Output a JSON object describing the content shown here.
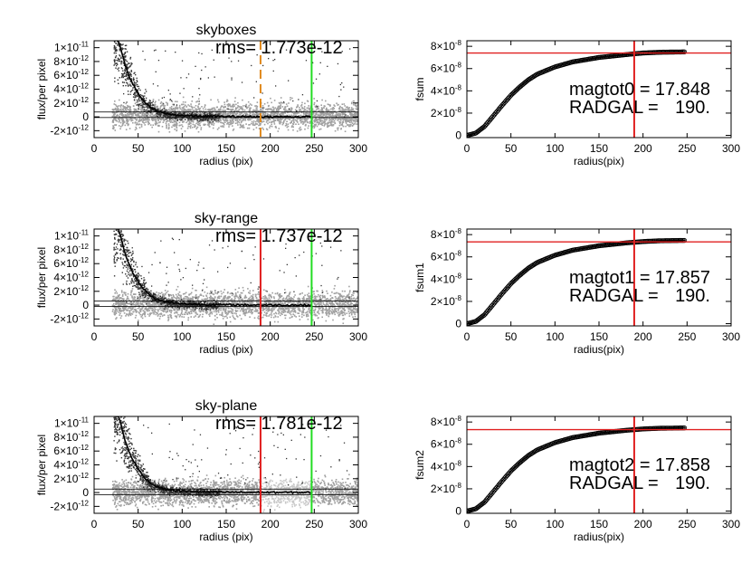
{
  "chart_data": [
    {
      "type": "scatter",
      "title": "skyboxes",
      "xlabel": "radius (pix)",
      "ylabel": "flux/per pixel",
      "xlim": [
        0,
        300
      ],
      "ylim": [
        -3e-12,
        1.1e-11
      ],
      "xticks": [
        "0",
        "50",
        "100",
        "150",
        "200",
        "250",
        "300"
      ],
      "yticks": [
        {
          "value": -2e-12,
          "mant": "-2",
          "exp": "-12"
        },
        {
          "value": 0,
          "mant": "0",
          "exp": ""
        },
        {
          "value": 2e-12,
          "mant": "2",
          "exp": "-12"
        },
        {
          "value": 4e-12,
          "mant": "4",
          "exp": "-12"
        },
        {
          "value": 6e-12,
          "mant": "6",
          "exp": "-12"
        },
        {
          "value": 8e-12,
          "mant": "8",
          "exp": "-12"
        },
        {
          "value": 1e-11,
          "mant": "1",
          "exp": "-11"
        }
      ],
      "times_sign": "×10",
      "rms_label": "rms=",
      "rms_value": "1.773e-12",
      "sky_level": 3e-13,
      "vlines": [
        {
          "x": 189,
          "color": "#e08a1e",
          "style": "dashed"
        },
        {
          "x": 247,
          "color": "#22dd22",
          "style": "solid"
        }
      ],
      "profile": [
        [
          28,
          1.1e-11
        ],
        [
          35,
          7.6e-12
        ],
        [
          40,
          5.8e-12
        ],
        [
          45,
          4.5e-12
        ],
        [
          50,
          3.4e-12
        ],
        [
          55,
          2.5e-12
        ],
        [
          60,
          1.8e-12
        ],
        [
          65,
          1.3e-12
        ],
        [
          70,
          9e-13
        ],
        [
          80,
          5e-13
        ],
        [
          90,
          3e-13
        ],
        [
          100,
          2e-13
        ],
        [
          120,
          1e-13
        ],
        [
          150,
          5e-14
        ],
        [
          200,
          2e-14
        ],
        [
          247,
          1e-14
        ]
      ]
    },
    {
      "type": "line",
      "title": "",
      "xlabel": "radius(pix)",
      "ylabel": "fsum",
      "xlim": [
        0,
        300
      ],
      "ylim": [
        -2e-09,
        8.5e-08
      ],
      "xticks": [
        "0",
        "50",
        "100",
        "150",
        "200",
        "250",
        "300"
      ],
      "yticks": [
        {
          "value": 0,
          "mant": "0",
          "exp": ""
        },
        {
          "value": 2e-08,
          "mant": "2",
          "exp": "-8"
        },
        {
          "value": 4e-08,
          "mant": "4",
          "exp": "-8"
        },
        {
          "value": 6e-08,
          "mant": "6",
          "exp": "-8"
        },
        {
          "value": 8e-08,
          "mant": "8",
          "exp": "-8"
        }
      ],
      "times_sign": "×10",
      "annotation": [
        {
          "label": "magtot0 =",
          "value": "17.848"
        },
        {
          "label": "RADGAL =",
          "value": "190."
        }
      ],
      "hline": 7.4e-08,
      "vline": 190,
      "curve": [
        [
          0,
          0
        ],
        [
          10,
          2e-09
        ],
        [
          20,
          8e-09
        ],
        [
          30,
          1.75e-08
        ],
        [
          40,
          2.7e-08
        ],
        [
          50,
          3.6e-08
        ],
        [
          60,
          4.35e-08
        ],
        [
          70,
          5e-08
        ],
        [
          80,
          5.5e-08
        ],
        [
          100,
          6.15e-08
        ],
        [
          120,
          6.6e-08
        ],
        [
          150,
          7e-08
        ],
        [
          180,
          7.25e-08
        ],
        [
          200,
          7.4e-08
        ],
        [
          220,
          7.47e-08
        ],
        [
          248,
          7.5e-08
        ]
      ]
    },
    {
      "type": "scatter",
      "title": "sky-range",
      "xlabel": "radius (pix)",
      "ylabel": "flux/per pixel",
      "xlim": [
        0,
        300
      ],
      "ylim": [
        -3e-12,
        1.1e-11
      ],
      "xticks": [
        "0",
        "50",
        "100",
        "150",
        "200",
        "250",
        "300"
      ],
      "yticks": [
        {
          "value": -2e-12,
          "mant": "-2",
          "exp": "-12"
        },
        {
          "value": 0,
          "mant": "0",
          "exp": ""
        },
        {
          "value": 2e-12,
          "mant": "2",
          "exp": "-12"
        },
        {
          "value": 4e-12,
          "mant": "4",
          "exp": "-12"
        },
        {
          "value": 6e-12,
          "mant": "6",
          "exp": "-12"
        },
        {
          "value": 8e-12,
          "mant": "8",
          "exp": "-12"
        },
        {
          "value": 1e-11,
          "mant": "1",
          "exp": "-11"
        }
      ],
      "times_sign": "×10",
      "rms_label": "rms=",
      "rms_value": "1.737e-12",
      "sky_level": 2e-13,
      "vlines": [
        {
          "x": 189,
          "color": "#e02020",
          "style": "solid"
        },
        {
          "x": 247,
          "color": "#22dd22",
          "style": "solid"
        }
      ],
      "profile": [
        [
          28,
          1.1e-11
        ],
        [
          35,
          7.6e-12
        ],
        [
          40,
          5.8e-12
        ],
        [
          45,
          4.5e-12
        ],
        [
          50,
          3.4e-12
        ],
        [
          55,
          2.5e-12
        ],
        [
          60,
          1.8e-12
        ],
        [
          65,
          1.3e-12
        ],
        [
          70,
          9e-13
        ],
        [
          80,
          5e-13
        ],
        [
          90,
          3e-13
        ],
        [
          100,
          2e-13
        ],
        [
          120,
          1e-13
        ],
        [
          150,
          5e-14
        ],
        [
          200,
          2e-14
        ],
        [
          247,
          1e-14
        ]
      ]
    },
    {
      "type": "line",
      "title": "",
      "xlabel": "radius(pix)",
      "ylabel": "fsum1",
      "xlim": [
        0,
        300
      ],
      "ylim": [
        -2e-09,
        8.5e-08
      ],
      "xticks": [
        "0",
        "50",
        "100",
        "150",
        "200",
        "250",
        "300"
      ],
      "yticks": [
        {
          "value": 0,
          "mant": "0",
          "exp": ""
        },
        {
          "value": 2e-08,
          "mant": "2",
          "exp": "-8"
        },
        {
          "value": 4e-08,
          "mant": "4",
          "exp": "-8"
        },
        {
          "value": 6e-08,
          "mant": "6",
          "exp": "-8"
        },
        {
          "value": 8e-08,
          "mant": "8",
          "exp": "-8"
        }
      ],
      "times_sign": "×10",
      "annotation": [
        {
          "label": "magtot1 =",
          "value": "17.857"
        },
        {
          "label": "RADGAL =",
          "value": "190."
        }
      ],
      "hline": 7.35e-08,
      "vline": 190,
      "curve": [
        [
          0,
          0
        ],
        [
          10,
          2e-09
        ],
        [
          20,
          8e-09
        ],
        [
          30,
          1.75e-08
        ],
        [
          40,
          2.7e-08
        ],
        [
          50,
          3.6e-08
        ],
        [
          60,
          4.35e-08
        ],
        [
          70,
          5e-08
        ],
        [
          80,
          5.5e-08
        ],
        [
          100,
          6.15e-08
        ],
        [
          120,
          6.6e-08
        ],
        [
          150,
          7e-08
        ],
        [
          180,
          7.25e-08
        ],
        [
          200,
          7.38e-08
        ],
        [
          220,
          7.45e-08
        ],
        [
          248,
          7.48e-08
        ]
      ]
    },
    {
      "type": "scatter",
      "title": "sky-plane",
      "xlabel": "radius (pix)",
      "ylabel": "flux/per pixel",
      "xlim": [
        0,
        300
      ],
      "ylim": [
        -3e-12,
        1.1e-11
      ],
      "xticks": [
        "0",
        "50",
        "100",
        "150",
        "200",
        "250",
        "300"
      ],
      "yticks": [
        {
          "value": -2e-12,
          "mant": "-2",
          "exp": "-12"
        },
        {
          "value": 0,
          "mant": "0",
          "exp": ""
        },
        {
          "value": 2e-12,
          "mant": "2",
          "exp": "-12"
        },
        {
          "value": 4e-12,
          "mant": "4",
          "exp": "-12"
        },
        {
          "value": 6e-12,
          "mant": "6",
          "exp": "-12"
        },
        {
          "value": 8e-12,
          "mant": "8",
          "exp": "-12"
        },
        {
          "value": 1e-11,
          "mant": "1",
          "exp": "-11"
        }
      ],
      "times_sign": "×10",
      "rms_label": "rms=",
      "rms_value": "1.781e-12",
      "sky_level": 1e-13,
      "vlines": [
        {
          "x": 189,
          "color": "#e02020",
          "style": "solid"
        },
        {
          "x": 247,
          "color": "#22dd22",
          "style": "solid"
        }
      ],
      "profile": [
        [
          28,
          1.1e-11
        ],
        [
          35,
          7.6e-12
        ],
        [
          40,
          5.8e-12
        ],
        [
          45,
          4.5e-12
        ],
        [
          50,
          3.4e-12
        ],
        [
          55,
          2.5e-12
        ],
        [
          60,
          1.8e-12
        ],
        [
          65,
          1.3e-12
        ],
        [
          70,
          9e-13
        ],
        [
          80,
          5e-13
        ],
        [
          90,
          3e-13
        ],
        [
          100,
          2e-13
        ],
        [
          120,
          1e-13
        ],
        [
          150,
          5e-14
        ],
        [
          200,
          2e-14
        ],
        [
          247,
          1e-14
        ]
      ]
    },
    {
      "type": "line",
      "title": "",
      "xlabel": "radius(pix)",
      "ylabel": "fsum2",
      "xlim": [
        0,
        300
      ],
      "ylim": [
        -2e-09,
        8.5e-08
      ],
      "xticks": [
        "0",
        "50",
        "100",
        "150",
        "200",
        "250",
        "300"
      ],
      "yticks": [
        {
          "value": 0,
          "mant": "0",
          "exp": ""
        },
        {
          "value": 2e-08,
          "mant": "2",
          "exp": "-8"
        },
        {
          "value": 4e-08,
          "mant": "4",
          "exp": "-8"
        },
        {
          "value": 6e-08,
          "mant": "6",
          "exp": "-8"
        },
        {
          "value": 8e-08,
          "mant": "8",
          "exp": "-8"
        }
      ],
      "times_sign": "×10",
      "annotation": [
        {
          "label": "magtot2 =",
          "value": "17.858"
        },
        {
          "label": "RADGAL =",
          "value": "190."
        }
      ],
      "hline": 7.32e-08,
      "vline": 190,
      "curve": [
        [
          0,
          0
        ],
        [
          10,
          2e-09
        ],
        [
          20,
          8e-09
        ],
        [
          30,
          1.75e-08
        ],
        [
          40,
          2.7e-08
        ],
        [
          50,
          3.6e-08
        ],
        [
          60,
          4.35e-08
        ],
        [
          70,
          5e-08
        ],
        [
          80,
          5.5e-08
        ],
        [
          100,
          6.15e-08
        ],
        [
          120,
          6.6e-08
        ],
        [
          150,
          7e-08
        ],
        [
          180,
          7.25e-08
        ],
        [
          200,
          7.38e-08
        ],
        [
          220,
          7.44e-08
        ],
        [
          248,
          7.47e-08
        ]
      ]
    }
  ],
  "colors": {
    "sky_points": "#a0a0a0",
    "sky_points_light": "#c8c8c8",
    "data_points": "#333333",
    "profile": "#000000",
    "ref_line": "#e02020"
  }
}
